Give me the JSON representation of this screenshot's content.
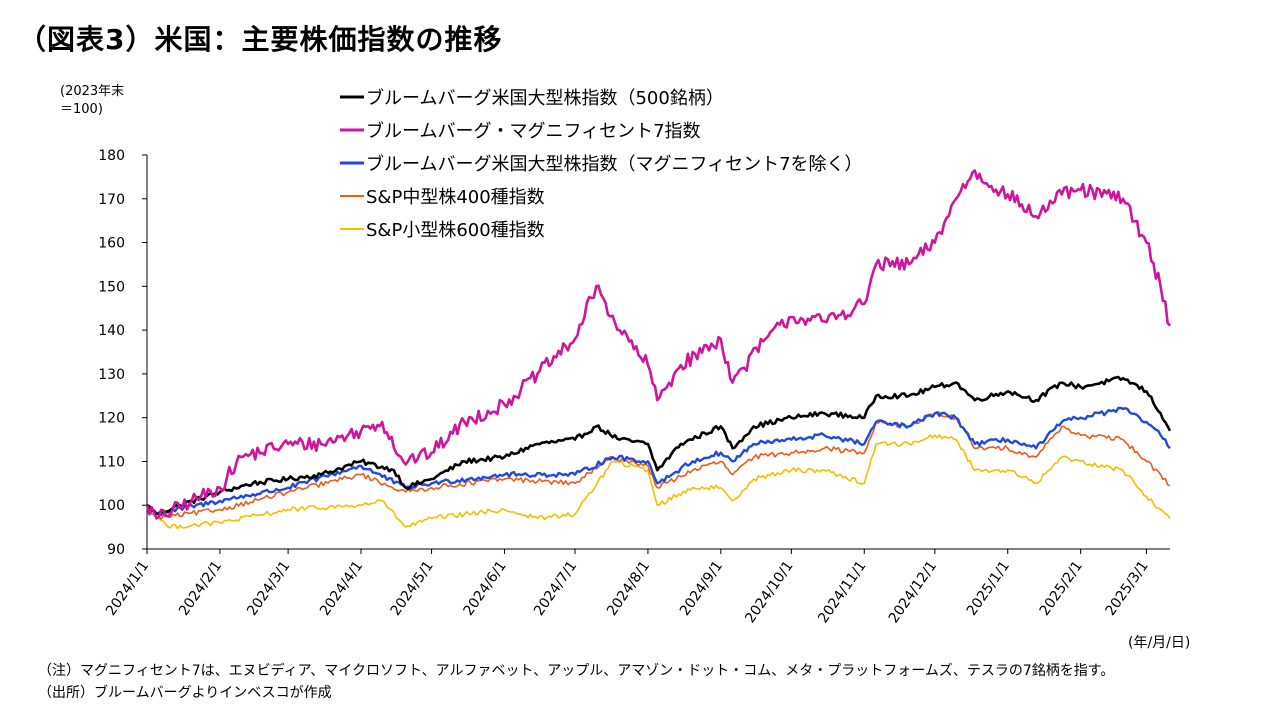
{
  "title": "（図表3）米国：主要株価指数の推移",
  "unit_line1": "(2023年末",
  "unit_line2": "＝100)",
  "x_unit": "(年/月/日)",
  "notes": [
    "（注）マグニフィセント7は、エヌビディア、マイクロソフト、アルファベット、アップル、アマゾン・ドット・コム、メタ・プラットフォームズ、テスラの7銘柄を指す。",
    "（出所）ブルームバーグよりインベスコが作成"
  ],
  "chart_data": {
    "type": "line",
    "title": "",
    "xlabel": "(年/月/日)",
    "ylabel": "(2023年末＝100)",
    "ylim": [
      90,
      180
    ],
    "yticks": [
      90,
      100,
      110,
      120,
      130,
      140,
      150,
      160,
      170,
      180
    ],
    "x_range": [
      "2024-01-01",
      "2025-03-11"
    ],
    "xticks": [
      "2024/1/1",
      "2024/2/1",
      "2024/3/1",
      "2024/4/1",
      "2024/5/1",
      "2024/6/1",
      "2024/7/1",
      "2024/8/1",
      "2024/9/1",
      "2024/10/1",
      "2024/11/1",
      "2024/12/1",
      "2025/1/1",
      "2025/2/1",
      "2025/3/1"
    ],
    "grid": false,
    "legend_position": "top-center",
    "series": [
      {
        "name": "ブルームバーグ米国大型株指数（500銘柄）",
        "color": "#000000",
        "points": [
          [
            "2024-01-01",
            100
          ],
          [
            "2024-01-05",
            98
          ],
          [
            "2024-01-15",
            100
          ],
          [
            "2024-02-01",
            103
          ],
          [
            "2024-02-15",
            105
          ],
          [
            "2024-03-01",
            106
          ],
          [
            "2024-03-15",
            107
          ],
          [
            "2024-04-01",
            110
          ],
          [
            "2024-04-15",
            108
          ],
          [
            "2024-04-20",
            104
          ],
          [
            "2024-05-01",
            106
          ],
          [
            "2024-05-15",
            110
          ],
          [
            "2024-06-01",
            111
          ],
          [
            "2024-06-15",
            114
          ],
          [
            "2024-07-01",
            115
          ],
          [
            "2024-07-10",
            118
          ],
          [
            "2024-07-20",
            115
          ],
          [
            "2024-08-01",
            114
          ],
          [
            "2024-08-05",
            108
          ],
          [
            "2024-08-15",
            114
          ],
          [
            "2024-09-01",
            118
          ],
          [
            "2024-09-06",
            113
          ],
          [
            "2024-09-15",
            118
          ],
          [
            "2024-10-01",
            120
          ],
          [
            "2024-10-15",
            121
          ],
          [
            "2024-11-01",
            120
          ],
          [
            "2024-11-06",
            125
          ],
          [
            "2024-11-20",
            125
          ],
          [
            "2024-12-01",
            127
          ],
          [
            "2024-12-10",
            128
          ],
          [
            "2024-12-18",
            124
          ],
          [
            "2025-01-01",
            126
          ],
          [
            "2025-01-13",
            124
          ],
          [
            "2025-01-24",
            128
          ],
          [
            "2025-02-01",
            127
          ],
          [
            "2025-02-19",
            129
          ],
          [
            "2025-03-01",
            126
          ],
          [
            "2025-03-07",
            121
          ],
          [
            "2025-03-11",
            117
          ]
        ]
      },
      {
        "name": "ブルームバーグ・マグニフィセント7指数",
        "color": "#d0149b",
        "points": [
          [
            "2024-01-01",
            100
          ],
          [
            "2024-01-05",
            97
          ],
          [
            "2024-01-20",
            101
          ],
          [
            "2024-02-01",
            104
          ],
          [
            "2024-02-10",
            111
          ],
          [
            "2024-03-01",
            114
          ],
          [
            "2024-03-15",
            114
          ],
          [
            "2024-04-01",
            117
          ],
          [
            "2024-04-10",
            119
          ],
          [
            "2024-04-19",
            110
          ],
          [
            "2024-05-01",
            112
          ],
          [
            "2024-05-15",
            119
          ],
          [
            "2024-06-01",
            123
          ],
          [
            "2024-06-15",
            130
          ],
          [
            "2024-07-01",
            138
          ],
          [
            "2024-07-10",
            150
          ],
          [
            "2024-07-20",
            140
          ],
          [
            "2024-08-01",
            132
          ],
          [
            "2024-08-05",
            124
          ],
          [
            "2024-08-15",
            132
          ],
          [
            "2024-09-01",
            138
          ],
          [
            "2024-09-06",
            128
          ],
          [
            "2024-09-20",
            138
          ],
          [
            "2024-10-01",
            143
          ],
          [
            "2024-10-15",
            142
          ],
          [
            "2024-11-01",
            146
          ],
          [
            "2024-11-06",
            155
          ],
          [
            "2024-11-20",
            155
          ],
          [
            "2024-12-01",
            160
          ],
          [
            "2024-12-10",
            170
          ],
          [
            "2024-12-17",
            176
          ],
          [
            "2025-01-01",
            171
          ],
          [
            "2025-01-13",
            166
          ],
          [
            "2025-01-24",
            171
          ],
          [
            "2025-02-01",
            172
          ],
          [
            "2025-02-19",
            170
          ],
          [
            "2025-03-01",
            160
          ],
          [
            "2025-03-07",
            150
          ],
          [
            "2025-03-11",
            141
          ]
        ]
      },
      {
        "name": "ブルームバーグ米国大型株指数（マグニフィセント7を除く）",
        "color": "#1f49e0",
        "points": [
          [
            "2024-01-01",
            100
          ],
          [
            "2024-01-05",
            98
          ],
          [
            "2024-02-01",
            101
          ],
          [
            "2024-03-01",
            104
          ],
          [
            "2024-04-01",
            109
          ],
          [
            "2024-04-20",
            104
          ],
          [
            "2024-05-01",
            105
          ],
          [
            "2024-06-01",
            107
          ],
          [
            "2024-07-01",
            107
          ],
          [
            "2024-07-17",
            111
          ],
          [
            "2024-08-01",
            110
          ],
          [
            "2024-08-05",
            105
          ],
          [
            "2024-08-20",
            110
          ],
          [
            "2024-09-01",
            112
          ],
          [
            "2024-09-06",
            110
          ],
          [
            "2024-09-15",
            114
          ],
          [
            "2024-10-01",
            115
          ],
          [
            "2024-10-15",
            116
          ],
          [
            "2024-11-01",
            114
          ],
          [
            "2024-11-06",
            119
          ],
          [
            "2024-11-20",
            118
          ],
          [
            "2024-12-01",
            121
          ],
          [
            "2024-12-10",
            120
          ],
          [
            "2024-12-18",
            114
          ],
          [
            "2025-01-01",
            115
          ],
          [
            "2025-01-13",
            113
          ],
          [
            "2025-01-24",
            119
          ],
          [
            "2025-02-01",
            120
          ],
          [
            "2025-02-19",
            122
          ],
          [
            "2025-03-01",
            119
          ],
          [
            "2025-03-07",
            116
          ],
          [
            "2025-03-11",
            113
          ]
        ]
      },
      {
        "name": "S&P中型株400種指数",
        "color": "#f05a14",
        "points": [
          [
            "2024-01-01",
            100
          ],
          [
            "2024-01-05",
            97
          ],
          [
            "2024-02-01",
            99
          ],
          [
            "2024-03-01",
            103
          ],
          [
            "2024-04-01",
            107
          ],
          [
            "2024-04-20",
            103
          ],
          [
            "2024-05-01",
            104
          ],
          [
            "2024-06-01",
            106
          ],
          [
            "2024-07-01",
            105
          ],
          [
            "2024-07-17",
            111
          ],
          [
            "2024-08-01",
            109
          ],
          [
            "2024-08-05",
            104
          ],
          [
            "2024-08-20",
            108
          ],
          [
            "2024-09-01",
            110
          ],
          [
            "2024-09-06",
            107
          ],
          [
            "2024-09-15",
            111
          ],
          [
            "2024-10-01",
            112
          ],
          [
            "2024-10-15",
            113
          ],
          [
            "2024-11-01",
            112
          ],
          [
            "2024-11-06",
            119
          ],
          [
            "2024-11-20",
            118
          ],
          [
            "2024-12-01",
            121
          ],
          [
            "2024-12-10",
            120
          ],
          [
            "2024-12-18",
            113
          ],
          [
            "2025-01-01",
            113
          ],
          [
            "2025-01-13",
            111
          ],
          [
            "2025-01-24",
            118
          ],
          [
            "2025-02-01",
            116
          ],
          [
            "2025-02-19",
            115
          ],
          [
            "2025-03-01",
            110
          ],
          [
            "2025-03-07",
            107
          ],
          [
            "2025-03-11",
            104.5
          ]
        ]
      },
      {
        "name": "S&P小型株600種指数",
        "color": "#f5be00",
        "points": [
          [
            "2024-01-01",
            100
          ],
          [
            "2024-01-10",
            95
          ],
          [
            "2024-02-01",
            96
          ],
          [
            "2024-03-01",
            99
          ],
          [
            "2024-04-01",
            100
          ],
          [
            "2024-04-10",
            101
          ],
          [
            "2024-04-20",
            95
          ],
          [
            "2024-05-01",
            97
          ],
          [
            "2024-06-01",
            99
          ],
          [
            "2024-06-15",
            97
          ],
          [
            "2024-07-01",
            98
          ],
          [
            "2024-07-17",
            110
          ],
          [
            "2024-08-01",
            108
          ],
          [
            "2024-08-05",
            100
          ],
          [
            "2024-08-20",
            104
          ],
          [
            "2024-09-01",
            104
          ],
          [
            "2024-09-06",
            101
          ],
          [
            "2024-09-15",
            106
          ],
          [
            "2024-10-01",
            108
          ],
          [
            "2024-10-15",
            108
          ],
          [
            "2024-11-01",
            105
          ],
          [
            "2024-11-06",
            114
          ],
          [
            "2024-11-20",
            114
          ],
          [
            "2024-12-01",
            116
          ],
          [
            "2024-12-10",
            115
          ],
          [
            "2024-12-18",
            108
          ],
          [
            "2025-01-01",
            108
          ],
          [
            "2025-01-13",
            105
          ],
          [
            "2025-01-24",
            111
          ],
          [
            "2025-02-01",
            110
          ],
          [
            "2025-02-19",
            108
          ],
          [
            "2025-03-01",
            102
          ],
          [
            "2025-03-07",
            99
          ],
          [
            "2025-03-11",
            97
          ]
        ]
      }
    ]
  }
}
